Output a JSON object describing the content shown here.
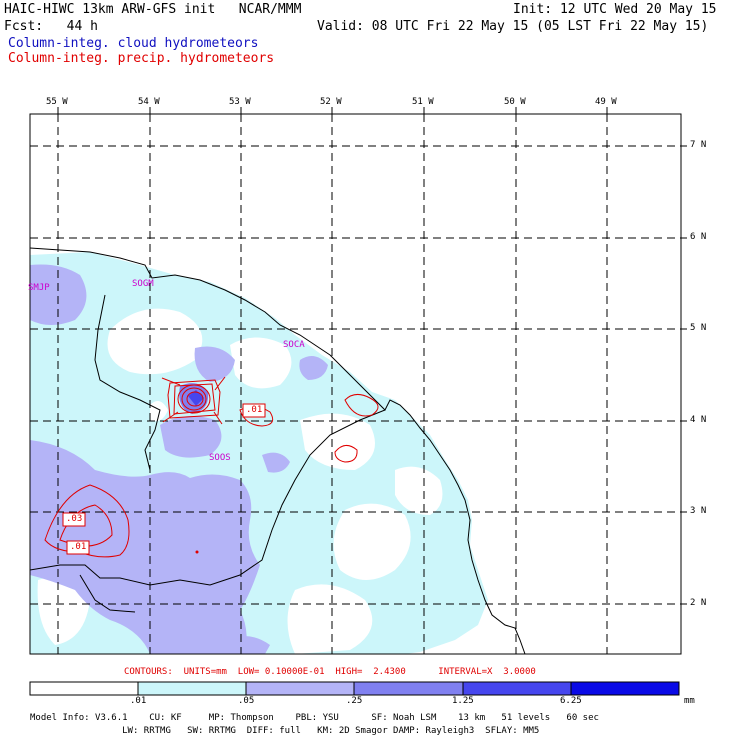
{
  "header": {
    "line1_left": "HAIC-HIWC 13km ARW-GFS init   NCAR/MMM",
    "line1_right": "Init: 12 UTC Wed 20 May 15",
    "line2_left": "Fcst:   44 h",
    "line2_right": "Valid: 08 UTC Fri 22 May 15 (05 LST Fri 22 May 15)",
    "legend_cloud": "Column-integ. cloud hydrometeors",
    "legend_precip": "Column-integ. precip. hydrometeors"
  },
  "map": {
    "lon_labels": [
      "55 W",
      "54 W",
      "53 W",
      "52 W",
      "51 W",
      "50 W",
      "49 W"
    ],
    "lat_labels": [
      "7 N",
      "6 N",
      "5 N",
      "4 N",
      "3 N",
      "2 N"
    ],
    "stations": [
      "SMJP",
      "SOGM",
      "SOCA",
      "SOOS"
    ],
    "contour_labels": [
      ".01",
      ".03",
      ".01"
    ]
  },
  "contour_info": "CONTOURS:  UNITS=mm  LOW= 0.10000E-01  HIGH=  2.4300      INTERVAL=X  3.0000",
  "colorbar": {
    "ticks": [
      ".01",
      ".05",
      ".25",
      "1.25",
      "6.25"
    ],
    "units": "mm",
    "colors": [
      "#ffffff",
      "#ccf6fa",
      "#b4b4f7",
      "#8080f0",
      "#4646ee",
      "#0a0ae6"
    ]
  },
  "footer": {
    "line1": "Model Info: V3.6.1    CU: KF     MP: Thompson    PBL: YSU      SF: Noah LSM    13 km   51 levels   60 sec",
    "line2": "                 LW: RRTMG   SW: RRTMG  DIFF: full   KM: 2D Smagor DAMP: Rayleigh3  SFLAY: MM5"
  }
}
